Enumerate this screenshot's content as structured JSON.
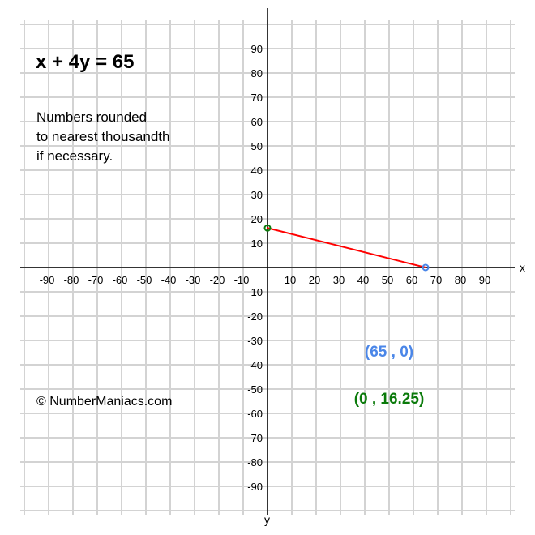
{
  "title": "x + 4y = 65",
  "note_lines": [
    "Numbers rounded",
    "to nearest thousandth",
    "if necessary."
  ],
  "copyright": "© NumberManiacs.com",
  "chart_data": {
    "type": "line",
    "equation": "x + 4y = 65",
    "xlabel": "x",
    "ylabel": "y",
    "xlim": [
      -100,
      100
    ],
    "ylim": [
      -100,
      100
    ],
    "grid": true,
    "x_ticks": [
      -90,
      -80,
      -70,
      -60,
      -50,
      -40,
      -30,
      -20,
      -10,
      10,
      20,
      30,
      40,
      50,
      60,
      70,
      80,
      90
    ],
    "y_ticks": [
      90,
      80,
      70,
      60,
      50,
      40,
      30,
      20,
      10,
      -10,
      -20,
      -30,
      -40,
      -50,
      -60,
      -70,
      -80,
      -90
    ],
    "segment": {
      "from": [
        0,
        16.25
      ],
      "to": [
        65,
        0
      ],
      "color": "#ff0000"
    },
    "points": [
      {
        "x": 65,
        "y": 0,
        "label": "(65 , 0)",
        "color": "#4a86e8"
      },
      {
        "x": 0,
        "y": 16.25,
        "label": "(0 , 16.25)",
        "color": "#0a7a0a"
      }
    ]
  }
}
